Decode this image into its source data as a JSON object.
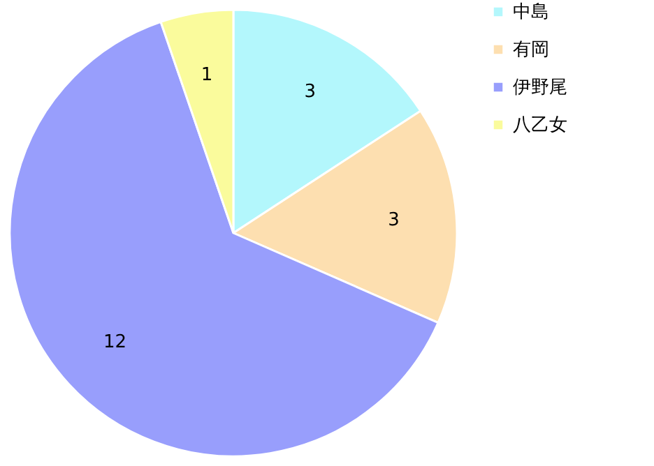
{
  "chart_data": {
    "type": "pie",
    "categories": [
      "中島",
      "有岡",
      "伊野尾",
      "八乙女"
    ],
    "values": [
      3,
      3,
      12,
      1
    ],
    "colors": [
      "#b3f7fc",
      "#fddfb0",
      "#989efc",
      "#fafb9c"
    ],
    "data_labels": true,
    "legend": "right"
  }
}
